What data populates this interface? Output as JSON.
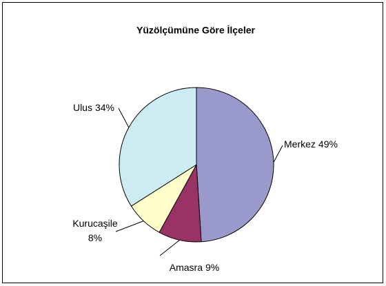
{
  "chart_data": {
    "type": "pie",
    "title": "Yüzölçümüne Göre İlçeler",
    "categories": [
      "Merkez",
      "Amasra",
      "Kurucaşile",
      "Ulus"
    ],
    "values": [
      49,
      9,
      8,
      34
    ],
    "value_labels": [
      "49%",
      "9%",
      "8%",
      "34%"
    ],
    "colors": [
      "#9999cc",
      "#993366",
      "#ffffcc",
      "#cdebf3"
    ]
  }
}
